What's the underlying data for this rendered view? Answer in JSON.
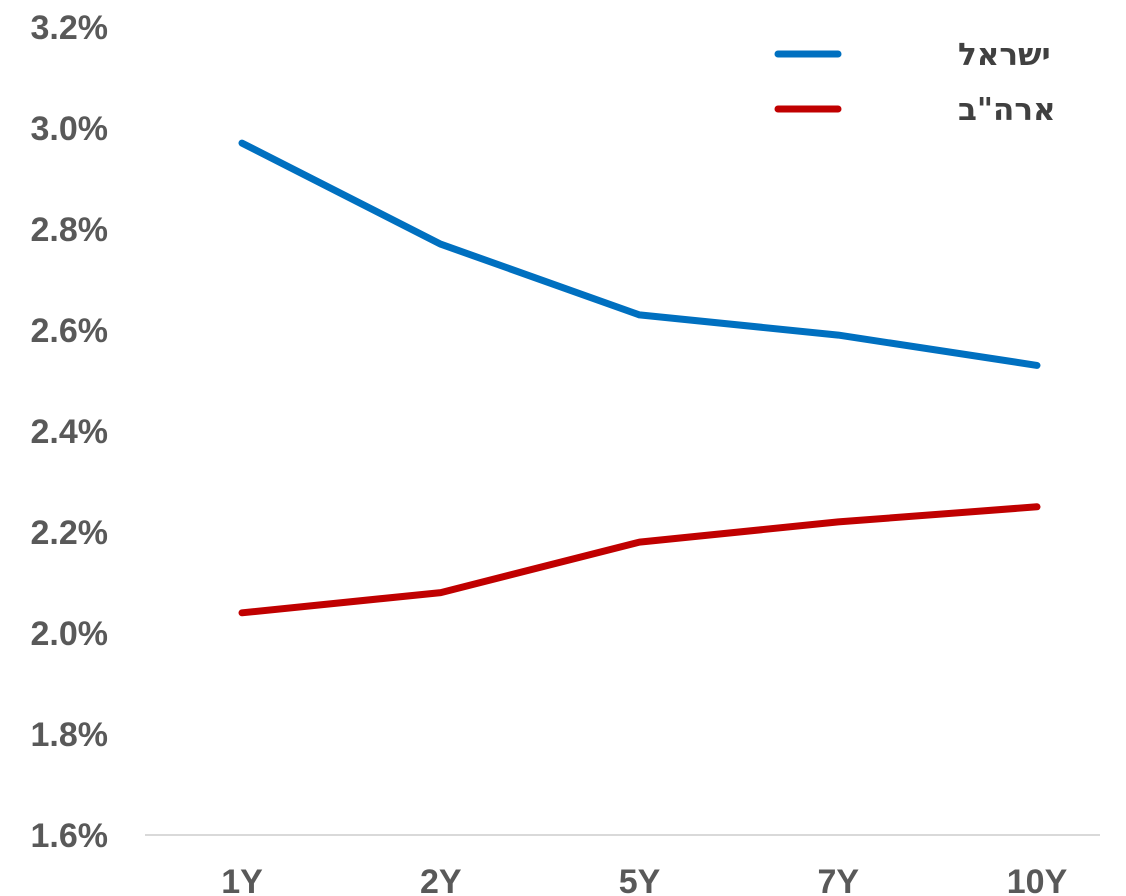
{
  "chart_data": {
    "type": "line",
    "categories": [
      "1Y",
      "2Y",
      "5Y",
      "7Y",
      "10Y"
    ],
    "series": [
      {
        "name": "ישראל",
        "color": "#0070C0",
        "values": [
          2.97,
          2.77,
          2.63,
          2.59,
          2.53
        ]
      },
      {
        "name": "ארה\"ב",
        "color": "#C00000",
        "values": [
          2.04,
          2.08,
          2.18,
          2.22,
          2.25
        ]
      }
    ],
    "y_ticks": [
      "1.6%",
      "1.8%",
      "2.0%",
      "2.2%",
      "2.4%",
      "2.6%",
      "2.8%",
      "3.0%",
      "3.2%"
    ],
    "ylim": [
      1.6,
      3.2
    ],
    "y_step": 0.2,
    "gridlines": false,
    "legend_position": "top-right",
    "axis_color": "#D9D9D9"
  }
}
